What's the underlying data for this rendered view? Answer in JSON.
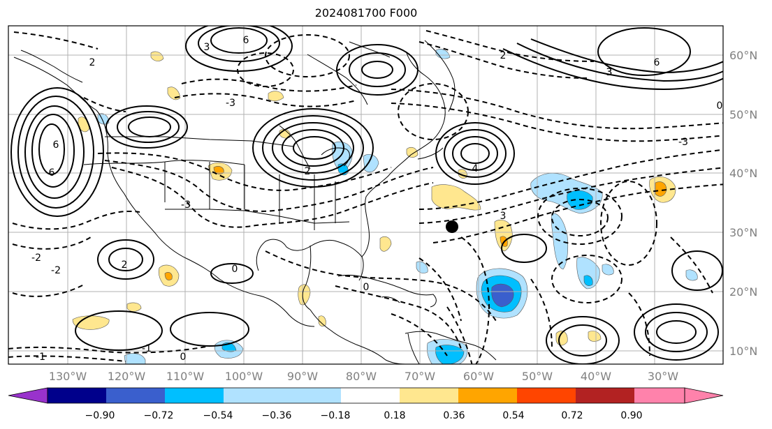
{
  "title": "2024081700 F000",
  "map": {
    "projection": "PlateCarree",
    "lon_range": [
      -137,
      -15
    ],
    "lat_range": [
      7.5,
      65
    ],
    "lon_labels": [
      "130°W",
      "120°W",
      "110°W",
      "100°W",
      "90°W",
      "80°W",
      "70°W",
      "60°W",
      "50°W",
      "40°W",
      "30°W"
    ],
    "lat_labels": [
      "60°N",
      "50°N",
      "40°N",
      "30°N",
      "20°N",
      "10°N"
    ],
    "gridlines": true,
    "marker": {
      "lon": -65.5,
      "lat": 31.0,
      "color": "#000000"
    }
  },
  "contour_labels": [
    "6",
    "6",
    "6",
    "3",
    "3",
    "3",
    "2",
    "2",
    "2",
    "2",
    "0",
    "0",
    "0",
    "0",
    "-1",
    "-1",
    "-2",
    "-2",
    "-3",
    "-3",
    "-3",
    "6",
    "3",
    "4"
  ],
  "colorbar": {
    "tick_labels": [
      "−0.90",
      "−0.72",
      "−0.54",
      "−0.36",
      "−0.18",
      "0.18",
      "0.36",
      "0.54",
      "0.72",
      "0.90"
    ],
    "colors": [
      "#9932cc",
      "#00008b",
      "#3a5fcd",
      "#00bfff",
      "#b0e2ff",
      "#ffffff",
      "#ffe78f",
      "#ffa500",
      "#ff4500",
      "#b22222",
      "#ff82ab"
    ],
    "extend": "both"
  }
}
